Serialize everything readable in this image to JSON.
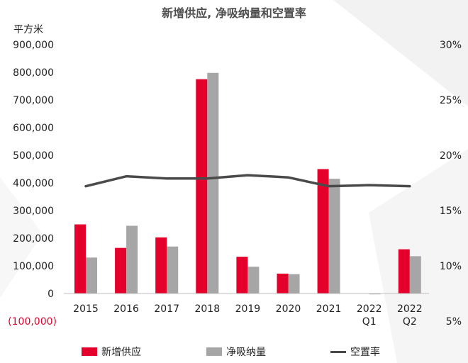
{
  "chart_data": {
    "type": "bar",
    "title": "新增供应, 净吸纳量和空置率",
    "y_unit_label": "平方米",
    "categories": [
      [
        "2015"
      ],
      [
        "2016"
      ],
      [
        "2017"
      ],
      [
        "2018"
      ],
      [
        "2019"
      ],
      [
        "2020"
      ],
      [
        "2021"
      ],
      [
        "2022",
        "Q1"
      ],
      [
        "2022",
        "Q2"
      ]
    ],
    "y_left": {
      "range": [
        -100000,
        900000
      ],
      "ticks": [
        -100000,
        0,
        100000,
        200000,
        300000,
        400000,
        500000,
        600000,
        700000,
        800000,
        900000
      ],
      "tick_labels": [
        "(100,000)",
        "0",
        "100,000",
        "200,000",
        "300,000",
        "400,000",
        "500,000",
        "600,000",
        "700,000",
        "800,000",
        "900,000"
      ]
    },
    "y_right": {
      "range": [
        5,
        30
      ],
      "ticks": [
        5,
        10,
        15,
        20,
        25,
        30
      ],
      "tick_labels": [
        "5%",
        "10%",
        "15%",
        "20%",
        "25%",
        "30%"
      ]
    },
    "series": [
      {
        "name": "新增供应",
        "type": "bar",
        "axis": "left",
        "color": "#e4002b",
        "values": [
          250000,
          165000,
          203000,
          775000,
          133000,
          72000,
          450000,
          0,
          160000
        ]
      },
      {
        "name": "净吸纳量",
        "type": "bar",
        "axis": "left",
        "color": "#a6a6a6",
        "values": [
          130000,
          245000,
          170000,
          798000,
          97000,
          70000,
          415000,
          -3000,
          135000
        ]
      },
      {
        "name": "空置率",
        "type": "line",
        "axis": "right",
        "color": "#4a4a4a",
        "values": [
          17.2,
          18.1,
          17.9,
          17.9,
          18.2,
          18.0,
          17.2,
          17.3,
          17.2
        ]
      }
    ],
    "legend_position": "bottom",
    "grid": false
  }
}
